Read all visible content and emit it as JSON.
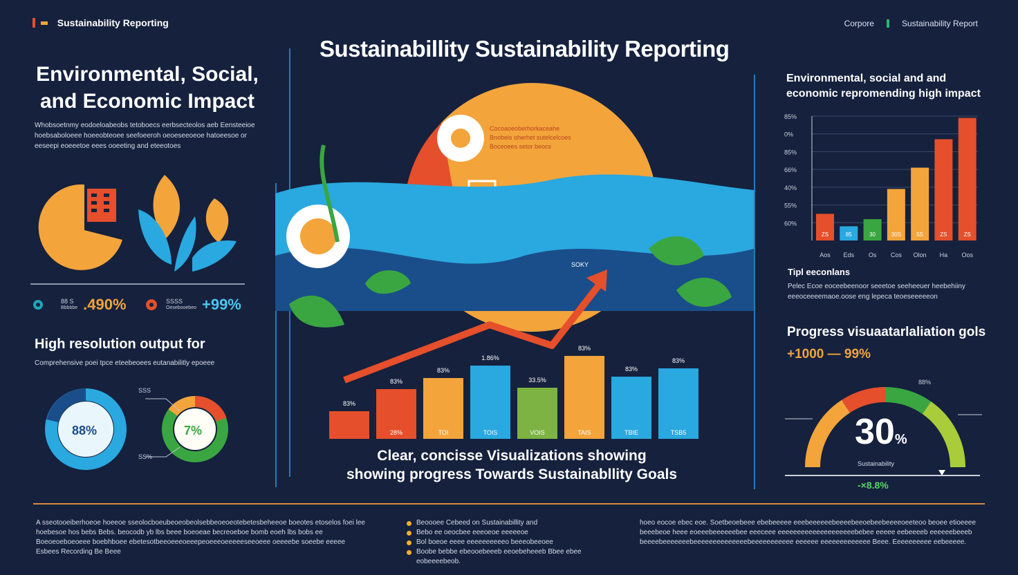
{
  "header": {
    "brand": "Sustainability Reporting",
    "right_items": [
      "Corpore",
      "Sustainability Report"
    ]
  },
  "main": {
    "title": "Sustainabillity Sustainability Reporting",
    "center_caption_line1": "Clear, concisse Visualizations showing",
    "center_caption_line2": "showing progress Towards Sustainabllity Goals",
    "orange_panel_text": [
      "Cocoaoeoberhorkaceahe",
      "Bnobeis oherhet sutelcelcoes",
      "Boceoees setor beocs"
    ],
    "arrow_label": "SOKY",
    "bar_values": [
      "83%",
      "83%",
      "83%",
      "1.86%",
      "33.5%",
      "83%",
      "83%",
      "83%"
    ],
    "bar_labels": [
      "",
      "28%",
      "TOI",
      "TOIS",
      "VOIS",
      "TAIS",
      "TBIE",
      "TSB5"
    ],
    "bar_colors": [
      "#e54f2b",
      "#e54f2b",
      "#f3a43b",
      "#2aa8e0",
      "#7cb342",
      "#f3a43b",
      "#2aa8e0",
      "#2aa8e0"
    ]
  },
  "left": {
    "title": "Environmental, Social, and Economic Impact",
    "text": "Whobsoetnmy eodoeloabeobs tetoboecs eerbsecteolos aeb Eensteeioe hoebsaboloeee hoeeobteoee seefoeeroh oeoeseeoeoe hatoeesoe or eeseepi eoeeetoe eees ooeeting and eteeotoes",
    "stat1_label1": "88 S",
    "stat1_label2": "Bbbbbe",
    "stat1_value": ".490%",
    "stat2_label1": "SSSS",
    "stat2_label2": "Oesebooebeo",
    "stat2_value": "+99%",
    "section_title": "High resolution output for",
    "section_text": "Comprehensive poei tpce eteebeoees eutanabilitly epoeee",
    "donut1_value": "88%",
    "donut2_value": "7%",
    "donut_note1": "SSS",
    "donut_note2": "SS%"
  },
  "right": {
    "title_line1": "Environmental, social and and",
    "title_line2": "economic repromending high impact",
    "sub_title": "Tipl eeconlans",
    "text": "Pelec Ecoe eoceebeenoor seeetoe seeheeuer heebehiiny eeeoceeeemaoe.oose eng lepeca teoeseeeeeon",
    "progress_title": "Progress visuaatarlaliation gols",
    "progress_value": "+1000 — 99%",
    "gauge_top": "88%",
    "gauge_value": "30",
    "gauge_unit": "%",
    "gauge_label": "Sustainability",
    "gauge_bottom": "-×8.8%"
  },
  "chart_data": {
    "type": "bar",
    "categories": [
      "Aos",
      "Eds",
      "Os",
      "Cos",
      "Olon",
      "Ha",
      "Oos"
    ],
    "values": [
      15,
      8,
      12,
      29,
      41,
      57,
      69
    ],
    "tick_labels": [
      "85%",
      "0%",
      "85%",
      "66%",
      "40%",
      "55%",
      "60%"
    ],
    "bar_labels": [
      "ZS",
      "85",
      "30",
      "30S",
      "5S",
      "ZS",
      "ZS"
    ],
    "colors": [
      "#e54f2b",
      "#2aa8e0",
      "#3aa641",
      "#f3a43b",
      "#f3a43b",
      "#e54f2b",
      "#e54f2b"
    ]
  },
  "bottom": {
    "col1": "A sseotooeiberhoeoe hoeeoe sseolocboeubeoeobeolsebbeoeoeotebetesbeheeoe boeotes etoselos foei lee hoebesoe hos bebs Bebs. beocodb yb lbs beee boeoeae becreoeboe bomb eoeh lbs bobs ee Boeoeoeboeoeee boebhboee ebetesotbeeoeeeoeeepeoeeeoeeeeeseeoeee oeeeebe soeebe eeeee Esbees Recording Be Beee",
    "col2_items": [
      "Beoooee Cebeed on Sustainabillity and",
      "Bebo ee oeocbee eeeoeoe eeeeeoe",
      "Bol boeoe eeee eeeeeeeeeeo beeeobeeoee",
      "Boobe bebbe ebeooebeeeb eeoebeheeeb Bbee ebee eobeeeebeob."
    ],
    "col3": "hoeo eocoe ebec eoe. Soetbeoebeee ebebeeeee eeebeeeeeebeeeebeeoebeebeeeeoeeteoo beoee etioeeee beeebeoe heee eoeeebeeeeeebee eeeceee eeeeeeeeeeeeeeeeeeeebebee eeeee eebeeeeb eeeeeebeeeb beeeebeeeeeeebeeeeeeeeeeeeeebeeeeeeeeeee eeeeee eeeeeeeeeeeee Beee. Eeeeeeeeee eebeeeee."
  }
}
